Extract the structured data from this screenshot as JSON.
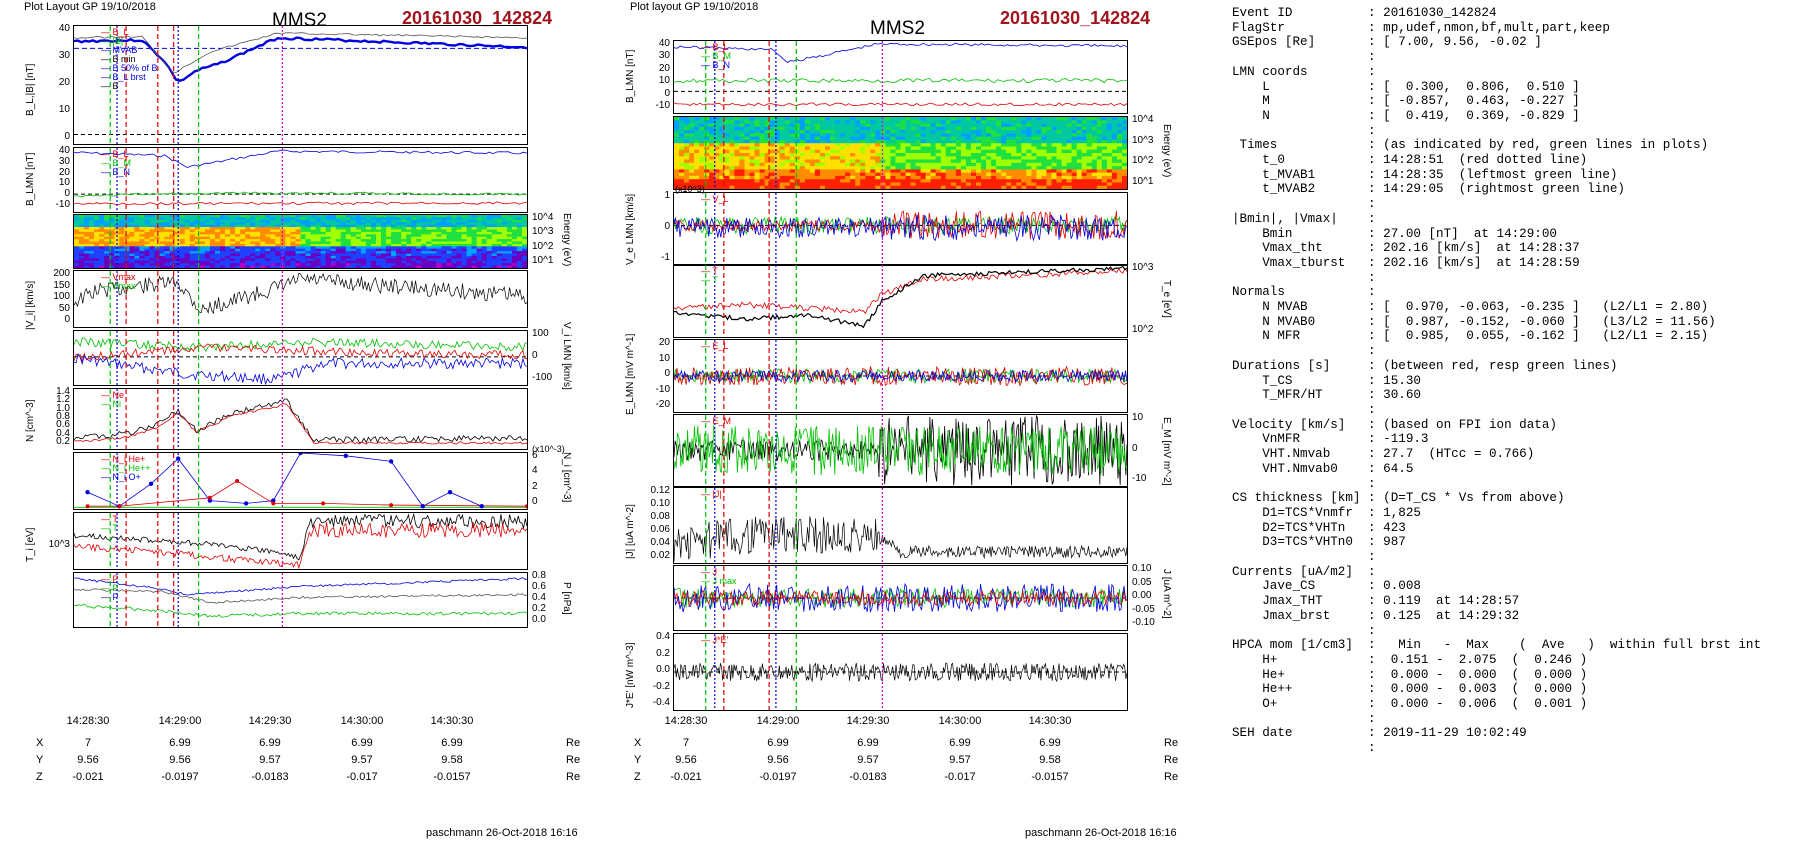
{
  "header": {
    "left_stamp": "Plot Layout GP 19/10/2018",
    "mid_stamp": "Plot layout GP 19/10/2018",
    "spacecraft": "MMS2",
    "event_id": "20161030_142824"
  },
  "footer": {
    "credit": "paschmann 26-Oct-2018 16:16"
  },
  "colors": {
    "event": "#a0141e",
    "red": "#e00000",
    "green": "#00c000",
    "blue": "#0000e0",
    "magenta": "#e000e0",
    "black": "#000000"
  },
  "x_axis": {
    "ticks": [
      "14:28:30",
      "14:29:00",
      "14:29:30",
      "14:30:00",
      "14:30:30"
    ],
    "X": {
      "label": "X",
      "values": [
        "7",
        "6.99",
        "6.99",
        "6.99",
        "6.99"
      ],
      "unit": "Re"
    },
    "Y": {
      "label": "Y",
      "values": [
        "9.56",
        "9.56",
        "9.57",
        "9.57",
        "9.58"
      ],
      "unit": "Re"
    },
    "Z": {
      "label": "Z",
      "values": [
        "-0.021",
        "-0.0197",
        "-0.0183",
        "-0.017",
        "-0.0157"
      ],
      "unit": "Re"
    }
  },
  "left_panels": {
    "p1": {
      "ylabel": "B_L,|B| [nT]",
      "ticks": [
        "40",
        "30",
        "20",
        "10",
        "0"
      ],
      "legend": [
        "B_L",
        "|B|",
        "MVAB",
        "B min",
        "B 50% of B",
        "B_L brst",
        "B"
      ]
    },
    "p2": {
      "ylabel": "B_LMN [nT]",
      "ticks": [
        "40",
        "30",
        "20",
        "10",
        "0",
        "-10"
      ],
      "legend": [
        "B_L",
        "B_M",
        "B_N"
      ]
    },
    "p3": {
      "ylabel": "Energy (eV)",
      "ticks": [
        "10^4",
        "10^3",
        "10^2",
        "10^1"
      ]
    },
    "p4": {
      "ylabel": "|V_i| [km/s]",
      "ticks": [
        "200",
        "150",
        "100",
        "50",
        "0"
      ],
      "legend": [
        "Vmax",
        "Vmax"
      ]
    },
    "p5": {
      "ylabel": "V_i LMN [km/s]",
      "ticks": [
        "100",
        "0",
        "-100"
      ]
    },
    "p6": {
      "ylabel": "N [cm^-3]",
      "ticks": [
        "1.4",
        "1.2",
        "1.0",
        "0.8",
        "0.6",
        "0.4",
        "0.2"
      ],
      "legend": [
        "Ne",
        "Ni"
      ]
    },
    "p7": {
      "ylabel": "N_i [cm^-3]",
      "ticks": [
        "6",
        "4",
        "2",
        "0"
      ],
      "scale": "(x10^-3)",
      "legend": [
        "N_i He+",
        "N_i He++",
        "N_i O+"
      ]
    },
    "p8": {
      "ylabel": "T_i [eV]",
      "ticks": [
        "10^3"
      ],
      "legend": [
        "T",
        "T"
      ]
    },
    "p9": {
      "ylabel": "P [nPa]",
      "ticks": [
        "0.8",
        "0.6",
        "0.4",
        "0.2",
        "0.0"
      ],
      "legend": [
        "P",
        "P",
        "P"
      ]
    }
  },
  "mid_panels": {
    "p1": {
      "ylabel": "B_LMN [nT]",
      "ticks": [
        "40",
        "30",
        "20",
        "10",
        "0",
        "-10"
      ],
      "legend": [
        "B_L",
        "B_M",
        "B_N"
      ]
    },
    "p2": {
      "ylabel": "Energy (eV)",
      "ticks": [
        "10^4",
        "10^3",
        "10^2",
        "10^1"
      ]
    },
    "p3": {
      "ylabel": "V_e LMN [km/s]",
      "ticks": [
        "1",
        "0",
        "-1"
      ],
      "scale": "(x10^3)",
      "legend": [
        "V_L"
      ]
    },
    "p4": {
      "ylabel": "T_e [eV]",
      "ticks": [
        "10^3",
        "10^2"
      ],
      "legend": [
        "T",
        "T"
      ]
    },
    "p5": {
      "ylabel": "E_LMN [mV m^-1]",
      "ticks": [
        "20",
        "10",
        "0",
        "-10",
        "-20"
      ],
      "legend": [
        "E_L"
      ]
    },
    "p6": {
      "ylabel": "E_M [mV m^-2]",
      "ticks": [
        "10",
        "0",
        "-10"
      ],
      "legend": [
        "E_M"
      ]
    },
    "p7": {
      "ylabel": "|J| [uA m^-2]",
      "ticks": [
        "0.12",
        "0.10",
        "0.08",
        "0.06",
        "0.04",
        "0.02"
      ],
      "legend": [
        "|J|"
      ]
    },
    "p8": {
      "ylabel": "J [uA m^-2]",
      "ticks": [
        "0.10",
        "0.05",
        "0.00",
        "-0.05",
        "-0.10"
      ],
      "legend": [
        "J",
        "J max"
      ]
    },
    "p9": {
      "ylabel": "J*E' [nW m^-3]",
      "ticks": [
        "0.4",
        "0.2",
        "0.0",
        "-0.2",
        "-0.4"
      ],
      "legend": [
        "J*E'"
      ]
    }
  },
  "info_text": "Event ID          : 20161030_142824\nFlagStr           : mp,udef,nmon,bf,mult,part,keep\nGSEpos [Re]       : [ 7.00, 9.56, -0.02 ]\n                  :\nLMN coords        :\n    L             : [  0.300,  0.806,  0.510 ]\n    M             : [ -0.857,  0.463, -0.227 ]\n    N             : [  0.419,  0.369, -0.829 ]\n                  :\n Times            : (as indicated by red, green lines in plots)\n    t_0           : 14:28:51  (red dotted line)\n    t_MVAB1       : 14:28:35  (leftmost green line)\n    t_MVAB2       : 14:29:05  (rightmost green line)\n                  :\n|Bmin|, |Vmax|    :\n    Bmin          : 27.00 [nT]  at 14:29:00\n    Vmax_tht      : 202.16 [km/s]  at 14:28:37\n    Vmax_tburst   : 202.16 [km/s]  at 14:28:59\n                  :\nNormals           :\n    N MVAB        : [  0.970, -0.063, -0.235 ]   (L2/L1 = 2.80)\n    N MVAB0       : [  0.987, -0.152, -0.060 ]   (L3/L2 = 11.56)\n    N MFR         : [  0.985,  0.055, -0.162 ]   (L2/L1 = 2.15)\n                  :\nDurations [s]     : (between red, resp green lines)\n    T_CS          : 15.30\n    T_MFR/HT      : 30.60\n                  :\nVelocity [km/s]   : (based on FPI ion data)\n    VnMFR         : -119.3\n    VHT.Nmvab     : 27.7  (HTcc = 0.766)\n    VHT.Nmvab0    : 64.5\n                  :\nCS thickness [km] : (D=T_CS * Vs from above)\n    D1=TCS*Vnmfr  : 1,825\n    D2=TCS*VHTn   : 423\n    D3=TCS*VHTn0  : 987\n                  :\nCurrents [uA/m2]  :\n    Jave_CS       : 0.008\n    Jmax_THT      : 0.119  at 14:28:57\n    Jmax_brst     : 0.125  at 14:29:32\n                  :\nHPCA mom [1/cm3]  :   Min   -  Max    (  Ave   )  within full brst int\n    H+            :  0.151 -  2.075  (  0.246 )\n    He+           :  0.000 -  0.000  (  0.000 )\n    He++          :  0.000 -  0.003  (  0.000 )\n    O+            :  0.000 -  0.006  (  0.001 )\n                  :\nSEH date          : 2019-11-29 10:02:49\n                  :"
}
